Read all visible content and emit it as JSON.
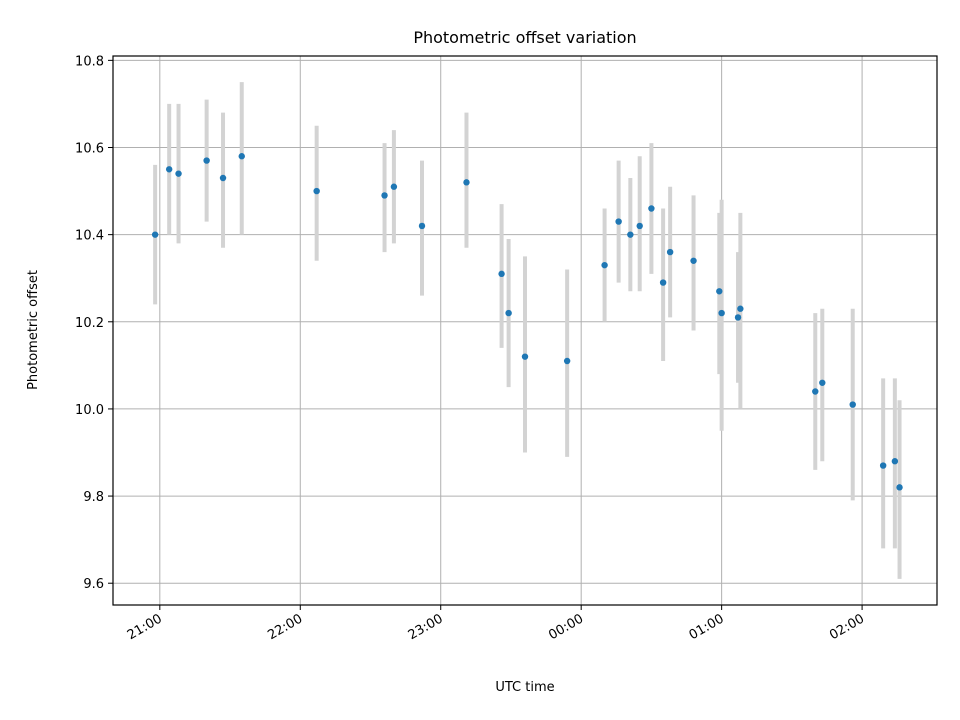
{
  "chart_data": {
    "type": "scatter",
    "title": "Photometric offset variation",
    "xlabel": "UTC time",
    "ylabel": "Photometric offset",
    "x_unit": "UTC time",
    "xlim": [
      "20:40",
      "02:32"
    ],
    "ylim": [
      9.55,
      10.81
    ],
    "x_ticks": [
      "21:00",
      "22:00",
      "23:00",
      "00:00",
      "01:00",
      "02:00"
    ],
    "y_ticks": [
      "9.6",
      "9.8",
      "10.0",
      "10.2",
      "10.4",
      "10.6",
      "10.8"
    ],
    "grid": true,
    "error_bar_color": "#d3d3d3",
    "marker_color": "#1f77b4",
    "points": [
      {
        "t": "20:58",
        "y": 10.4,
        "lo": 10.24,
        "hi": 10.56
      },
      {
        "t": "21:04",
        "y": 10.55,
        "lo": 10.4,
        "hi": 10.7
      },
      {
        "t": "21:08",
        "y": 10.54,
        "lo": 10.38,
        "hi": 10.7
      },
      {
        "t": "21:20",
        "y": 10.57,
        "lo": 10.43,
        "hi": 10.71
      },
      {
        "t": "21:27",
        "y": 10.53,
        "lo": 10.37,
        "hi": 10.68
      },
      {
        "t": "21:35",
        "y": 10.58,
        "lo": 10.4,
        "hi": 10.75
      },
      {
        "t": "22:07",
        "y": 10.5,
        "lo": 10.34,
        "hi": 10.65
      },
      {
        "t": "22:36",
        "y": 10.49,
        "lo": 10.36,
        "hi": 10.61
      },
      {
        "t": "22:40",
        "y": 10.51,
        "lo": 10.38,
        "hi": 10.64
      },
      {
        "t": "22:52",
        "y": 10.42,
        "lo": 10.26,
        "hi": 10.57
      },
      {
        "t": "23:11",
        "y": 10.52,
        "lo": 10.37,
        "hi": 10.68
      },
      {
        "t": "23:26",
        "y": 10.31,
        "lo": 10.14,
        "hi": 10.47
      },
      {
        "t": "23:29",
        "y": 10.22,
        "lo": 10.05,
        "hi": 10.39
      },
      {
        "t": "23:36",
        "y": 10.12,
        "lo": 9.9,
        "hi": 10.35
      },
      {
        "t": "23:54",
        "y": 10.11,
        "lo": 9.89,
        "hi": 10.32
      },
      {
        "t": "00:10",
        "y": 10.33,
        "lo": 10.2,
        "hi": 10.46
      },
      {
        "t": "00:16",
        "y": 10.43,
        "lo": 10.29,
        "hi": 10.57
      },
      {
        "t": "00:21",
        "y": 10.4,
        "lo": 10.27,
        "hi": 10.53
      },
      {
        "t": "00:25",
        "y": 10.42,
        "lo": 10.27,
        "hi": 10.58
      },
      {
        "t": "00:30",
        "y": 10.46,
        "lo": 10.31,
        "hi": 10.61
      },
      {
        "t": "00:35",
        "y": 10.29,
        "lo": 10.11,
        "hi": 10.46
      },
      {
        "t": "00:38",
        "y": 10.36,
        "lo": 10.21,
        "hi": 10.51
      },
      {
        "t": "00:48",
        "y": 10.34,
        "lo": 10.18,
        "hi": 10.49
      },
      {
        "t": "00:59",
        "y": 10.27,
        "lo": 10.08,
        "hi": 10.45
      },
      {
        "t": "01:00",
        "y": 10.22,
        "lo": 9.95,
        "hi": 10.48
      },
      {
        "t": "01:07",
        "y": 10.21,
        "lo": 10.06,
        "hi": 10.36
      },
      {
        "t": "01:08",
        "y": 10.23,
        "lo": 10.0,
        "hi": 10.45
      },
      {
        "t": "01:40",
        "y": 10.04,
        "lo": 9.86,
        "hi": 10.22
      },
      {
        "t": "01:43",
        "y": 10.06,
        "lo": 9.88,
        "hi": 10.23
      },
      {
        "t": "01:56",
        "y": 10.01,
        "lo": 9.79,
        "hi": 10.23
      },
      {
        "t": "02:09",
        "y": 9.87,
        "lo": 9.68,
        "hi": 10.07
      },
      {
        "t": "02:14",
        "y": 9.88,
        "lo": 9.68,
        "hi": 10.07
      },
      {
        "t": "02:16",
        "y": 9.82,
        "lo": 9.61,
        "hi": 10.02
      }
    ]
  }
}
